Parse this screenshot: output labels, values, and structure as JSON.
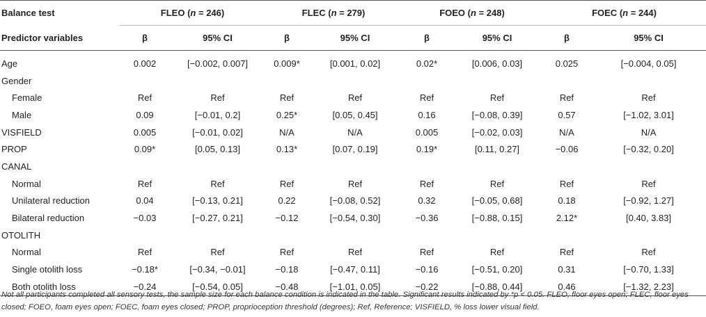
{
  "header": {
    "row1_label": "Balance test",
    "row2_label": "Predictor variables",
    "groups": [
      {
        "abbr": "FLEO",
        "n_prefix": "(",
        "n_var": "n",
        "n_value": " = 246)"
      },
      {
        "abbr": "FLEC",
        "n_prefix": "(",
        "n_var": "n",
        "n_value": " = 279)"
      },
      {
        "abbr": "FOEO",
        "n_prefix": "(",
        "n_var": "n",
        "n_value": " = 248)"
      },
      {
        "abbr": "FOEC",
        "n_prefix": "(",
        "n_var": "n",
        "n_value": " = 244)"
      }
    ],
    "beta_label": "β",
    "ci_label": "95% CI"
  },
  "rows": [
    {
      "label": "Age",
      "cells": [
        "0.002",
        "[−0.002, 0.007]",
        "0.009*",
        "[0.001, 0.02]",
        "0.02*",
        "[0.006, 0.03]",
        "0.025",
        "[−0.004, 0.05]"
      ]
    },
    {
      "label": "Gender",
      "cells": [
        "",
        "",
        "",
        "",
        "",
        "",
        "",
        ""
      ]
    },
    {
      "label": "Female",
      "cells": [
        "Ref",
        "Ref",
        "Ref",
        "Ref",
        "Ref",
        "Ref",
        "Ref",
        "Ref"
      ]
    },
    {
      "label": "Male",
      "cells": [
        "0.09",
        "[−0.01, 0.2]",
        "0.25*",
        "[0.05, 0.45]",
        "0.16",
        "[−0.08, 0.39]",
        "0.57",
        "[−1.02, 3.01]"
      ]
    },
    {
      "label": "VISFIELD",
      "cells": [
        "0.005",
        "[−0.01, 0.02]",
        "N/A",
        "N/A",
        "0.005",
        "[−0.02, 0.03]",
        "N/A",
        "N/A"
      ]
    },
    {
      "label": "PROP",
      "cells": [
        "0.09*",
        "[0.05, 0.13]",
        "0.13*",
        "[0.07, 0.19]",
        "0.19*",
        "[0.11, 0.27]",
        "−0.06",
        "[−0.32, 0.20]"
      ]
    },
    {
      "label": "CANAL",
      "cells": [
        "",
        "",
        "",
        "",
        "",
        "",
        "",
        ""
      ]
    },
    {
      "label": "Normal",
      "cells": [
        "Ref",
        "Ref",
        "Ref",
        "Ref",
        "Ref",
        "Ref",
        "Ref",
        "Ref"
      ]
    },
    {
      "label": "Unilateral reduction",
      "cells": [
        "0.04",
        "[−0.13, 0.21]",
        "0.22",
        "[−0.08, 0.52]",
        "0.32",
        "[−0.05, 0.68]",
        "0.18",
        "[−0.92, 1.27]"
      ]
    },
    {
      "label": "Bilateral reduction",
      "cells": [
        "−0.03",
        "[−0.27, 0.21]",
        "−0.12",
        "[−0.54, 0.30]",
        "−0.36",
        "[−0.88, 0.15]",
        "2.12*",
        "[0.40, 3.83]"
      ]
    },
    {
      "label": "OTOLITH",
      "cells": [
        "",
        "",
        "",
        "",
        "",
        "",
        "",
        ""
      ]
    },
    {
      "label": "Normal",
      "cells": [
        "Ref",
        "Ref",
        "Ref",
        "Ref",
        "Ref",
        "Ref",
        "Ref",
        "Ref"
      ]
    },
    {
      "label": "Single otolith loss",
      "cells": [
        "−0.18*",
        "[−0.34, −0.01]",
        "−0.18",
        "[−0.47, 0.11]",
        "−0.16",
        "[−0.51, 0.20]",
        "0.31",
        "[−0.70, 1.33]"
      ]
    },
    {
      "label": "Both otolith loss",
      "cells": [
        "−0.24",
        "[−0.54, 0.05]",
        "−0.48",
        "[−1.01, 0.05]",
        "−0.22",
        "[−0.88, 0.44]",
        "0.46",
        "[−1.32, 2.23]"
      ]
    }
  ],
  "footnote": {
    "part1": "Not all participants completed all sensory tests, the sample size for each balance condition is indicated in the table. Significant results indicated by ",
    "p_marker": "*p",
    "part2": " < 0.05. FLEO, floor eyes open; FLEC, floor eyes closed; FOEO, foam eyes open; FOEC, foam eyes closed; PROP, proprioception threshold (degrees); Ref, Reference; VISFIELD, % loss lower visual field."
  }
}
